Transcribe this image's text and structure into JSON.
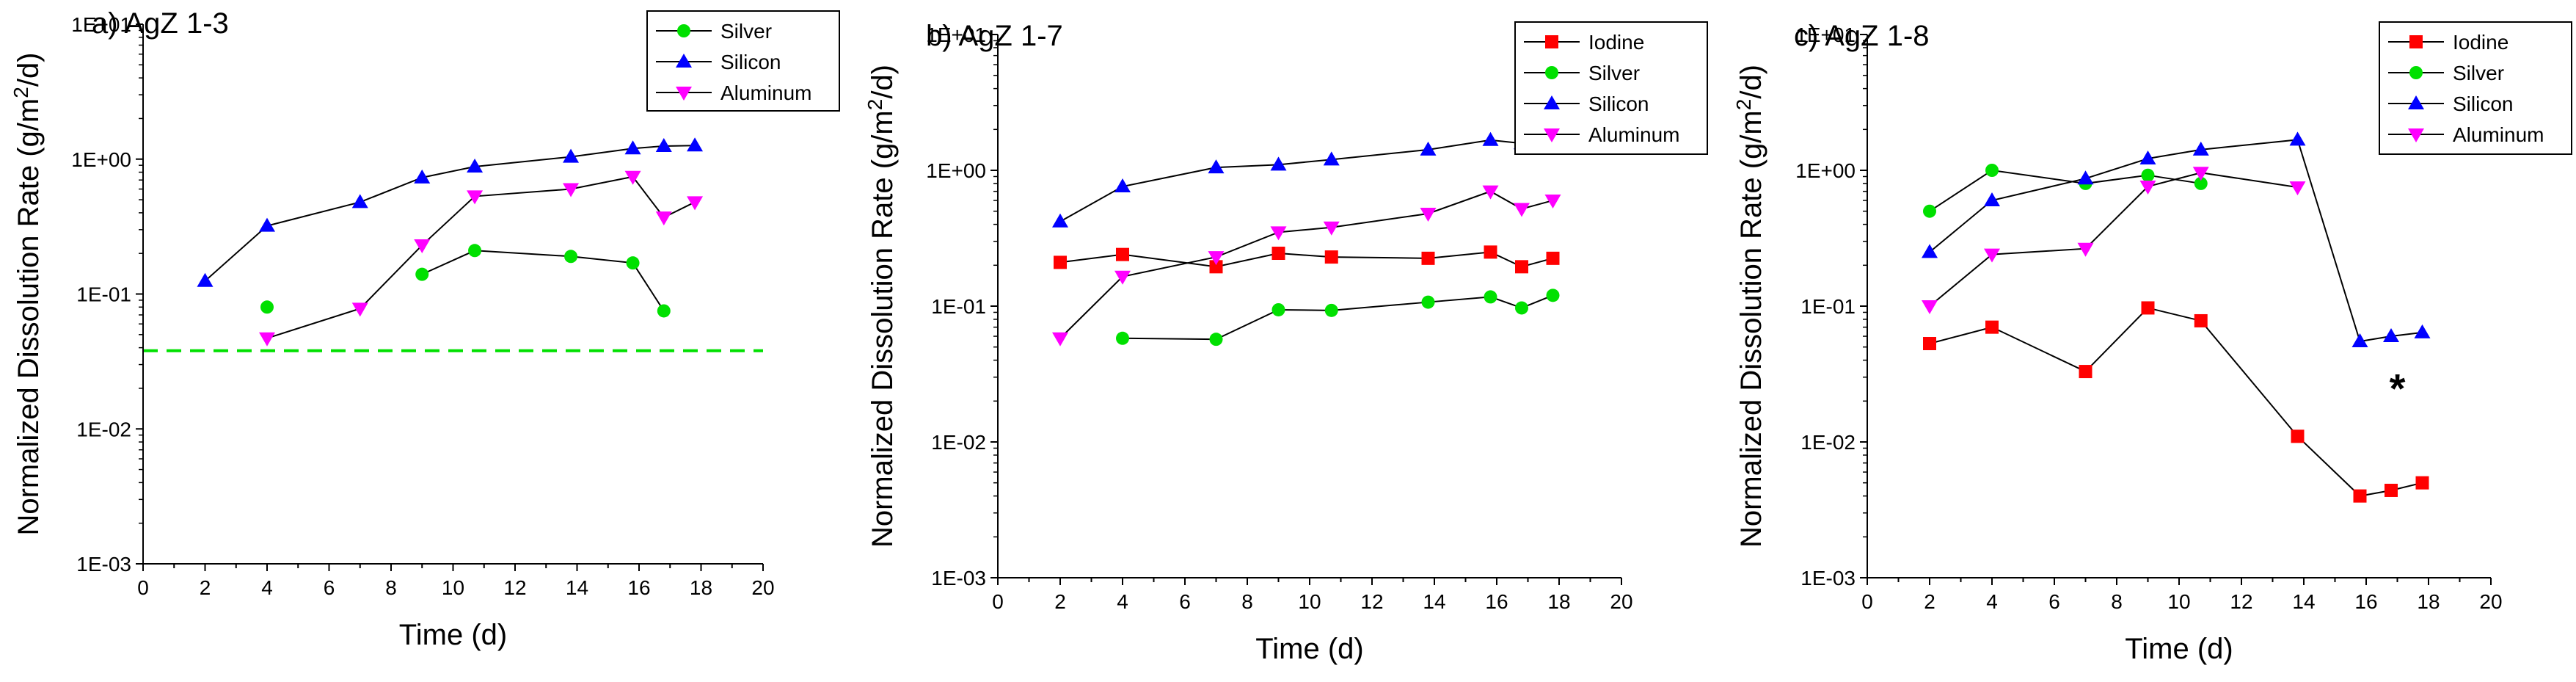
{
  "chart_data": [
    {
      "type": "scatter",
      "title": "a) AgZ 1-3",
      "xlabel": "Time (d)",
      "ylabel": "Normalized Dissolution Rate (g/m²/d)",
      "ylabel_parts": {
        "pre": "Normalized Dissolution Rate (g/m",
        "sup": "2",
        "post": "/d)"
      },
      "xlim": [
        0,
        20
      ],
      "ylim": [
        0.001,
        10
      ],
      "yscale": "log",
      "xticks": [
        0,
        2,
        4,
        6,
        8,
        10,
        12,
        14,
        16,
        18,
        20
      ],
      "yticks": [
        {
          "value": 0.001,
          "label": "1E-03"
        },
        {
          "value": 0.01,
          "label": "1E-02"
        },
        {
          "value": 0.1,
          "label": "1E-01"
        },
        {
          "value": 1,
          "label": "1E+00"
        },
        {
          "value": 10,
          "label": "1E+01"
        }
      ],
      "grid": false,
      "legend_position": "top-right",
      "series": [
        {
          "name": "Silver",
          "color": "#00e000",
          "marker": "circle",
          "points": [
            [
              4,
              0.08
            ],
            [
              9,
              0.14
            ],
            [
              10.7,
              0.21
            ],
            [
              13.8,
              0.19
            ],
            [
              15.8,
              0.17
            ],
            [
              16.8,
              0.075
            ]
          ],
          "segments": [
            [
              1,
              5
            ]
          ]
        },
        {
          "name": "Silicon",
          "color": "#0000ff",
          "marker": "triangle-up",
          "points": [
            [
              2,
              0.125
            ],
            [
              4,
              0.32
            ],
            [
              7,
              0.48
            ],
            [
              9,
              0.73
            ],
            [
              10.7,
              0.88
            ],
            [
              13.8,
              1.04
            ],
            [
              15.8,
              1.2
            ],
            [
              16.8,
              1.25
            ],
            [
              17.8,
              1.26
            ]
          ],
          "segments": [
            [
              0,
              8
            ]
          ]
        },
        {
          "name": "Aluminum",
          "color": "#ff00ff",
          "marker": "triangle-down",
          "points": [
            [
              4,
              0.047
            ],
            [
              7,
              0.078
            ],
            [
              9,
              0.23
            ],
            [
              10.7,
              0.53
            ],
            [
              13.8,
              0.6
            ],
            [
              15.8,
              0.74
            ],
            [
              16.8,
              0.37
            ],
            [
              17.8,
              0.48
            ]
          ],
          "segments": [
            [
              0,
              7
            ]
          ]
        }
      ],
      "reference_line": {
        "y": 0.038,
        "color": "#00e000",
        "style": "dashed"
      }
    },
    {
      "type": "scatter",
      "title": "b) AgZ 1-7",
      "xlabel": "Time (d)",
      "ylabel": "Normalized Dissolution Rate (g/m²/d)",
      "ylabel_parts": {
        "pre": "Normalized Dissolution Rate (g/m",
        "sup": "2",
        "post": "/d)"
      },
      "xlim": [
        0,
        20
      ],
      "ylim": [
        0.001,
        10
      ],
      "yscale": "log",
      "xticks": [
        0,
        2,
        4,
        6,
        8,
        10,
        12,
        14,
        16,
        18,
        20
      ],
      "yticks": [
        {
          "value": 0.001,
          "label": "1E-03"
        },
        {
          "value": 0.01,
          "label": "1E-02"
        },
        {
          "value": 0.1,
          "label": "1E-01"
        },
        {
          "value": 1,
          "label": "1E+00"
        },
        {
          "value": 10,
          "label": "1E+01"
        }
      ],
      "grid": false,
      "legend_position": "top-right",
      "series": [
        {
          "name": "Iodine",
          "color": "#ff0000",
          "marker": "square",
          "points": [
            [
              2,
              0.21
            ],
            [
              4,
              0.24
            ],
            [
              7,
              0.195
            ],
            [
              9,
              0.245
            ],
            [
              10.7,
              0.23
            ],
            [
              13.8,
              0.225
            ],
            [
              15.8,
              0.25
            ],
            [
              16.8,
              0.195
            ],
            [
              17.8,
              0.225
            ]
          ],
          "segments": [
            [
              0,
              8
            ]
          ]
        },
        {
          "name": "Silver",
          "color": "#00e000",
          "marker": "circle",
          "points": [
            [
              4,
              0.058
            ],
            [
              7,
              0.057
            ],
            [
              9,
              0.094
            ],
            [
              10.7,
              0.093
            ],
            [
              13.8,
              0.107
            ],
            [
              15.8,
              0.117
            ],
            [
              16.8,
              0.097
            ],
            [
              17.8,
              0.12
            ]
          ],
          "segments": [
            [
              0,
              7
            ]
          ]
        },
        {
          "name": "Silicon",
          "color": "#0000ff",
          "marker": "triangle-up",
          "points": [
            [
              2,
              0.42
            ],
            [
              4,
              0.76
            ],
            [
              7,
              1.05
            ],
            [
              9,
              1.1
            ],
            [
              10.7,
              1.2
            ],
            [
              13.8,
              1.42
            ],
            [
              15.8,
              1.67
            ],
            [
              16.8,
              1.58
            ],
            [
              17.8,
              1.72
            ]
          ],
          "segments": [
            [
              0,
              8
            ]
          ]
        },
        {
          "name": "Aluminum",
          "color": "#ff00ff",
          "marker": "triangle-down",
          "points": [
            [
              2,
              0.058
            ],
            [
              4,
              0.165
            ],
            [
              7,
              0.23
            ],
            [
              9,
              0.35
            ],
            [
              10.7,
              0.38
            ],
            [
              13.8,
              0.48
            ],
            [
              15.8,
              0.7
            ],
            [
              16.8,
              0.52
            ],
            [
              17.8,
              0.6
            ]
          ],
          "segments": [
            [
              0,
              8
            ]
          ]
        }
      ]
    },
    {
      "type": "scatter",
      "title": "c) AgZ 1-8",
      "xlabel": "Time (d)",
      "ylabel": "Normalized Dissolution Rate (g/m²/d)",
      "ylabel_parts": {
        "pre": "Normalized Dissolution Rate (g/m",
        "sup": "2",
        "post": "/d)"
      },
      "xlim": [
        0,
        20
      ],
      "ylim": [
        0.001,
        10
      ],
      "yscale": "log",
      "xticks": [
        0,
        2,
        4,
        6,
        8,
        10,
        12,
        14,
        16,
        18,
        20
      ],
      "yticks": [
        {
          "value": 0.001,
          "label": "1E-03"
        },
        {
          "value": 0.01,
          "label": "1E-02"
        },
        {
          "value": 0.1,
          "label": "1E-01"
        },
        {
          "value": 1,
          "label": "1E+00"
        },
        {
          "value": 10,
          "label": "1E+01"
        }
      ],
      "grid": false,
      "legend_position": "top-right",
      "series": [
        {
          "name": "Iodine",
          "color": "#ff0000",
          "marker": "square",
          "points": [
            [
              2,
              0.053
            ],
            [
              4,
              0.07
            ],
            [
              7,
              0.033
            ],
            [
              9,
              0.097
            ],
            [
              10.7,
              0.078
            ],
            [
              13.8,
              0.011
            ],
            [
              15.8,
              0.004
            ],
            [
              16.8,
              0.0044
            ],
            [
              17.8,
              0.005
            ]
          ],
          "segments": [
            [
              0,
              8
            ]
          ]
        },
        {
          "name": "Silver",
          "color": "#00e000",
          "marker": "circle",
          "points": [
            [
              2,
              0.5
            ],
            [
              4,
              1.0
            ],
            [
              7,
              0.8
            ],
            [
              9,
              0.92
            ],
            [
              10.7,
              0.8
            ]
          ],
          "segments": [
            [
              0,
              4
            ]
          ]
        },
        {
          "name": "Silicon",
          "color": "#0000ff",
          "marker": "triangle-up",
          "points": [
            [
              2,
              0.25
            ],
            [
              4,
              0.6
            ],
            [
              7,
              0.87
            ],
            [
              9,
              1.22
            ],
            [
              10.7,
              1.42
            ],
            [
              13.8,
              1.68
            ],
            [
              15.8,
              0.055
            ],
            [
              16.8,
              0.06
            ],
            [
              17.8,
              0.064
            ]
          ],
          "segments": [
            [
              0,
              8
            ]
          ]
        },
        {
          "name": "Aluminum",
          "color": "#ff00ff",
          "marker": "triangle-down",
          "points": [
            [
              2,
              0.1
            ],
            [
              4,
              0.24
            ],
            [
              7,
              0.265
            ],
            [
              9,
              0.76
            ],
            [
              10.7,
              0.96
            ],
            [
              13.8,
              0.75
            ]
          ],
          "segments": [
            [
              0,
              5
            ]
          ]
        }
      ],
      "annotation": {
        "text": "*",
        "x": 17,
        "y": 0.025
      }
    }
  ]
}
